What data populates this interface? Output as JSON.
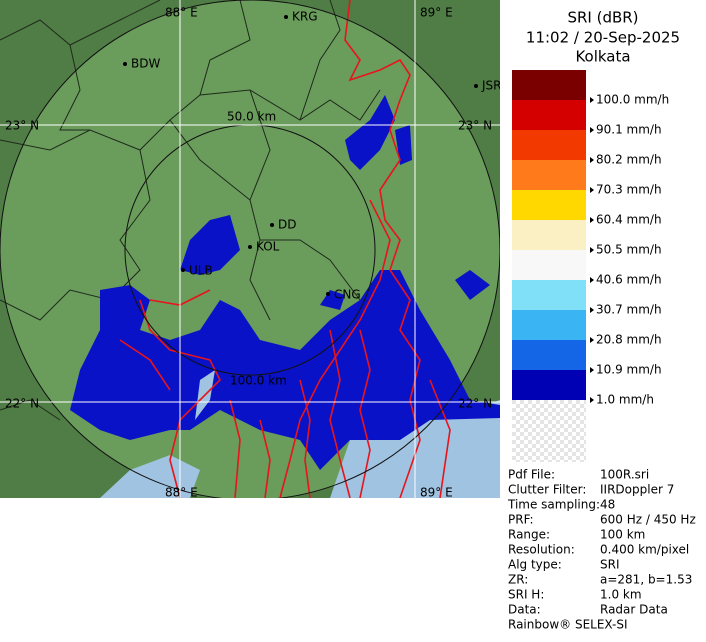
{
  "header": {
    "title": "SRI (dBR)",
    "time": "11:02 / 20-Sep-2025",
    "site": "Kolkata"
  },
  "map": {
    "grid_labels": [
      "88° E",
      "89° E",
      "23° N",
      "22° N"
    ],
    "range_labels": [
      "50.0 km",
      "100.0 km"
    ],
    "cities": [
      "KRG",
      "BDW",
      "JSR",
      "DD",
      "KOL",
      "ULB",
      "CNG"
    ]
  },
  "legend": {
    "colors": [
      "#7a0000",
      "#d40000",
      "#f23a00",
      "#ff7a1a",
      "#ffd800",
      "#fbf0c4",
      "#f8f8f8",
      "#7fe0f8",
      "#3ab4f2",
      "#1466e6",
      "#0000b4"
    ],
    "labels": [
      "100.0 mm/h",
      "90.1 mm/h",
      "80.2 mm/h",
      "70.3 mm/h",
      "60.4 mm/h",
      "50.5 mm/h",
      "40.6 mm/h",
      "30.7 mm/h",
      "20.8 mm/h",
      "10.9 mm/h",
      "1.0 mm/h"
    ]
  },
  "info": {
    "rows": [
      [
        "Pdf File:",
        "100R.sri"
      ],
      [
        "Clutter Filter:",
        "IIRDoppler 7"
      ],
      [
        "Time sampling:48"
      ],
      [
        "PRF:",
        "600 Hz / 450 Hz"
      ],
      [
        "Range:",
        "100 km"
      ],
      [
        "Resolution:",
        "0.400 km/pixel"
      ],
      [
        "Alg type:",
        "SRI"
      ],
      [
        "ZR:",
        "a=281, b=1.53"
      ],
      [
        "SRI H:",
        "1.0 km"
      ],
      [
        "Data:",
        "Radar Data"
      ],
      [
        "Rainbow® SELEX-SI"
      ]
    ]
  }
}
